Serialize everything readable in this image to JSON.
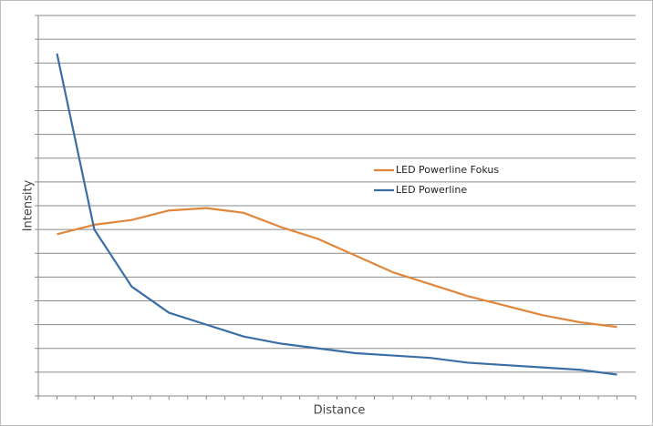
{
  "chart_data": {
    "type": "line",
    "x_label": "Distance",
    "y_label": "Intensity",
    "x": [
      1,
      3,
      5,
      7,
      9,
      11,
      13,
      15,
      17,
      19,
      21,
      23,
      25,
      27,
      29,
      31
    ],
    "series": [
      {
        "name": "LED Powerline Fokus",
        "color": "#e0873c",
        "values": [
          6.8,
          7.2,
          7.4,
          7.8,
          7.9,
          7.7,
          7.1,
          6.6,
          5.9,
          5.2,
          4.7,
          4.2,
          3.8,
          3.4,
          3.1,
          2.9
        ]
      },
      {
        "name": "LED Powerline",
        "color": "#3b6ea5",
        "values": [
          14.4,
          7.0,
          4.6,
          3.5,
          3.0,
          2.5,
          2.2,
          2.0,
          1.8,
          1.7,
          1.6,
          1.4,
          1.3,
          1.2,
          1.1,
          0.9
        ]
      }
    ],
    "xlim": [
      0,
      32
    ],
    "xticks": [
      0,
      1,
      2,
      3,
      4,
      5,
      6,
      7,
      8,
      9,
      10,
      11,
      12,
      13,
      14,
      15,
      16,
      17,
      18,
      19,
      20,
      21,
      22,
      23,
      24,
      25,
      26,
      27,
      28,
      29,
      30,
      31,
      32
    ],
    "ylim": [
      0,
      16
    ],
    "yticks": [
      0,
      1,
      2,
      3,
      4,
      5,
      6,
      7,
      8,
      9,
      10,
      11,
      12,
      13,
      14,
      15,
      16
    ],
    "grid": true
  }
}
